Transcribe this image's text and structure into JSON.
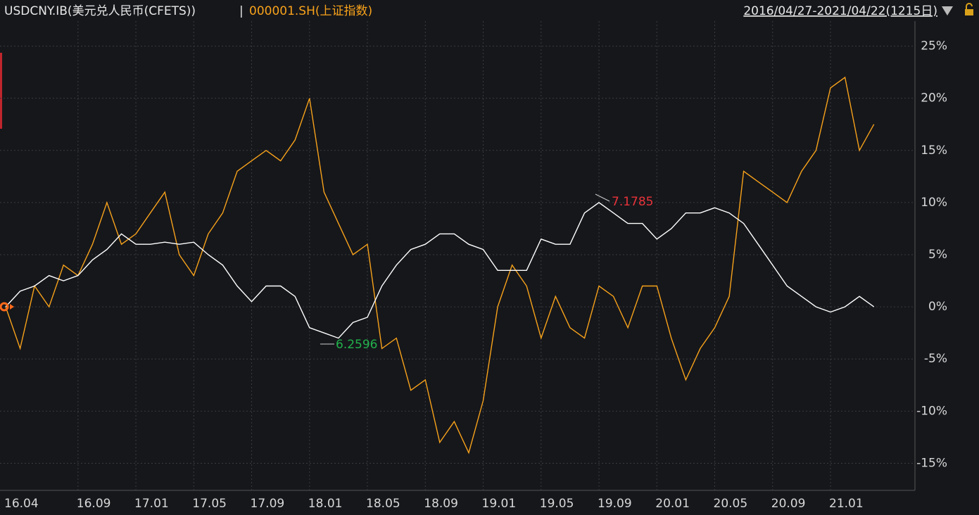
{
  "chart_data": {
    "type": "line",
    "subtitle": "2016/04/27-2021/04/22(1215日)",
    "separator": "|",
    "categories": [
      "16.04",
      null,
      null,
      null,
      null,
      "16.09",
      null,
      null,
      null,
      "17.01",
      null,
      null,
      null,
      "17.05",
      null,
      null,
      null,
      "17.09",
      null,
      null,
      null,
      "18.01",
      null,
      null,
      null,
      "18.05",
      null,
      null,
      null,
      "18.09",
      null,
      null,
      null,
      "19.01",
      null,
      null,
      null,
      "19.05",
      null,
      null,
      null,
      "19.09",
      null,
      null,
      null,
      "20.01",
      null,
      null,
      null,
      "20.05",
      null,
      null,
      null,
      "20.09",
      null,
      null,
      null,
      "21.01",
      null,
      null,
      null
    ],
    "series": [
      {
        "name": "USDCNY.IB(美元兑人民币(CFETS))",
        "color": "#ffffff",
        "values": [
          0,
          1.5,
          2,
          3,
          2.5,
          3,
          4.5,
          5.5,
          7,
          6,
          6,
          6.2,
          6,
          6.2,
          5,
          4,
          2,
          0.5,
          2,
          2,
          1,
          -2,
          -2.5,
          -3,
          -1.5,
          -1,
          2,
          4,
          5.5,
          6,
          7,
          7,
          6,
          5.5,
          3.5,
          3.5,
          3.5,
          6.5,
          6,
          6,
          9,
          10,
          9,
          8,
          8,
          6.5,
          7.5,
          9,
          9,
          9.5,
          9,
          8,
          6,
          4,
          2,
          1,
          0,
          -0.5,
          0,
          1,
          0
        ]
      },
      {
        "name": "000001.SH(上证指数)",
        "color": "#f7a21b",
        "values": [
          0,
          -4,
          2,
          0,
          4,
          3,
          6,
          10,
          6,
          7,
          9,
          11,
          5,
          3,
          7,
          9,
          13,
          14,
          15,
          14,
          16,
          20,
          11,
          8,
          5,
          6,
          -4,
          -3,
          -8,
          -7,
          -13,
          -11,
          -14,
          -9,
          0,
          4,
          2,
          -3,
          1,
          -2,
          -3,
          2,
          1,
          -2,
          2,
          2,
          -3,
          -7,
          -4,
          -2,
          1,
          13,
          12,
          11,
          10,
          13,
          15,
          21,
          22,
          15,
          17.5
        ]
      }
    ],
    "ylim": [
      -17.6,
      27.4
    ],
    "yticks": [
      {
        "value": -15,
        "label": "-15%"
      },
      {
        "value": -10,
        "label": "-10%"
      },
      {
        "value": -5,
        "label": "-5%"
      },
      {
        "value": 0,
        "label": "0%"
      },
      {
        "value": 5,
        "label": "5%"
      },
      {
        "value": 10,
        "label": "10%"
      },
      {
        "value": 15,
        "label": "15%"
      },
      {
        "value": 20,
        "label": "20%"
      },
      {
        "value": 25,
        "label": "25%"
      }
    ],
    "grid": true,
    "annotations": [
      {
        "text": "7.1785"
      },
      {
        "text": "6.2596"
      }
    ]
  }
}
